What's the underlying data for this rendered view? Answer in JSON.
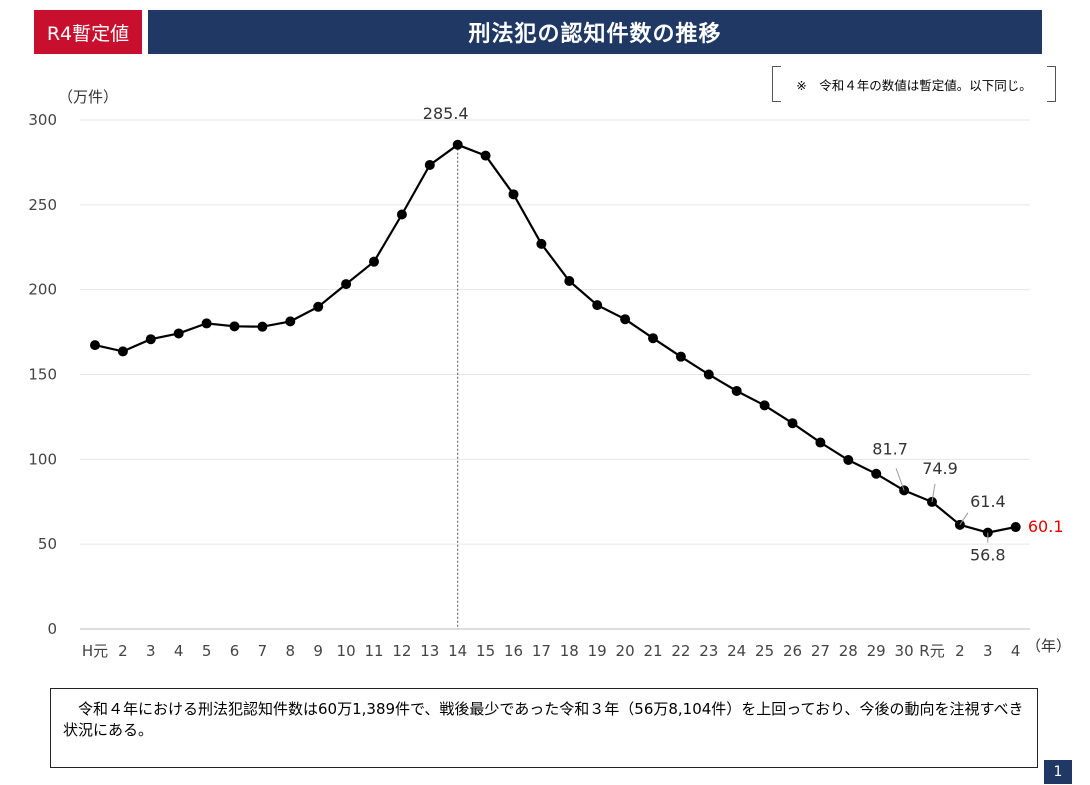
{
  "header": {
    "tag": "R4暫定値",
    "title": "刑法犯の認知件数の推移"
  },
  "note": "※　令和４年の数値は暫定値。以下同じ。",
  "summary": {
    "text": "　令和４年における刑法犯認知件数は60万1,389件で、戦後最少であった令和３年（56万8,104件）を上回っており、今後の動向を注視すべき状況にある。"
  },
  "page_number": "1",
  "colors": {
    "tag_bg": "#c8102e",
    "title_bg": "#1f3864",
    "highlight": "#e60000",
    "line": "#000000"
  },
  "chart_data": {
    "type": "line",
    "title": "",
    "xlabel": "（年）",
    "ylabel": "（万件）",
    "ylim": [
      0,
      300
    ],
    "yticks": [
      0,
      50,
      100,
      150,
      200,
      250,
      300
    ],
    "grid": true,
    "categories": [
      "H元",
      "2",
      "3",
      "4",
      "5",
      "6",
      "7",
      "8",
      "9",
      "10",
      "11",
      "12",
      "13",
      "14",
      "15",
      "16",
      "17",
      "18",
      "19",
      "20",
      "21",
      "22",
      "23",
      "24",
      "25",
      "26",
      "27",
      "28",
      "29",
      "30",
      "R元",
      "2",
      "3",
      "4"
    ],
    "values": [
      167.3,
      163.6,
      170.8,
      174.2,
      180.1,
      178.4,
      178.2,
      181.3,
      189.9,
      203.3,
      216.5,
      244.3,
      273.5,
      285.4,
      279.0,
      256.2,
      227.0,
      205.1,
      190.9,
      182.6,
      171.4,
      160.5,
      150.0,
      140.3,
      131.8,
      121.3,
      109.9,
      99.6,
      91.5,
      81.7,
      74.9,
      61.4,
      56.8,
      60.1
    ],
    "peak_marker_category": "14",
    "data_labels": [
      {
        "index": 13,
        "text": "285.4"
      },
      {
        "index": 29,
        "text": "81.7"
      },
      {
        "index": 30,
        "text": "74.9"
      },
      {
        "index": 31,
        "text": "61.4"
      },
      {
        "index": 32,
        "text": "56.8"
      },
      {
        "index": 33,
        "text": "60.1",
        "highlight": true
      }
    ]
  }
}
